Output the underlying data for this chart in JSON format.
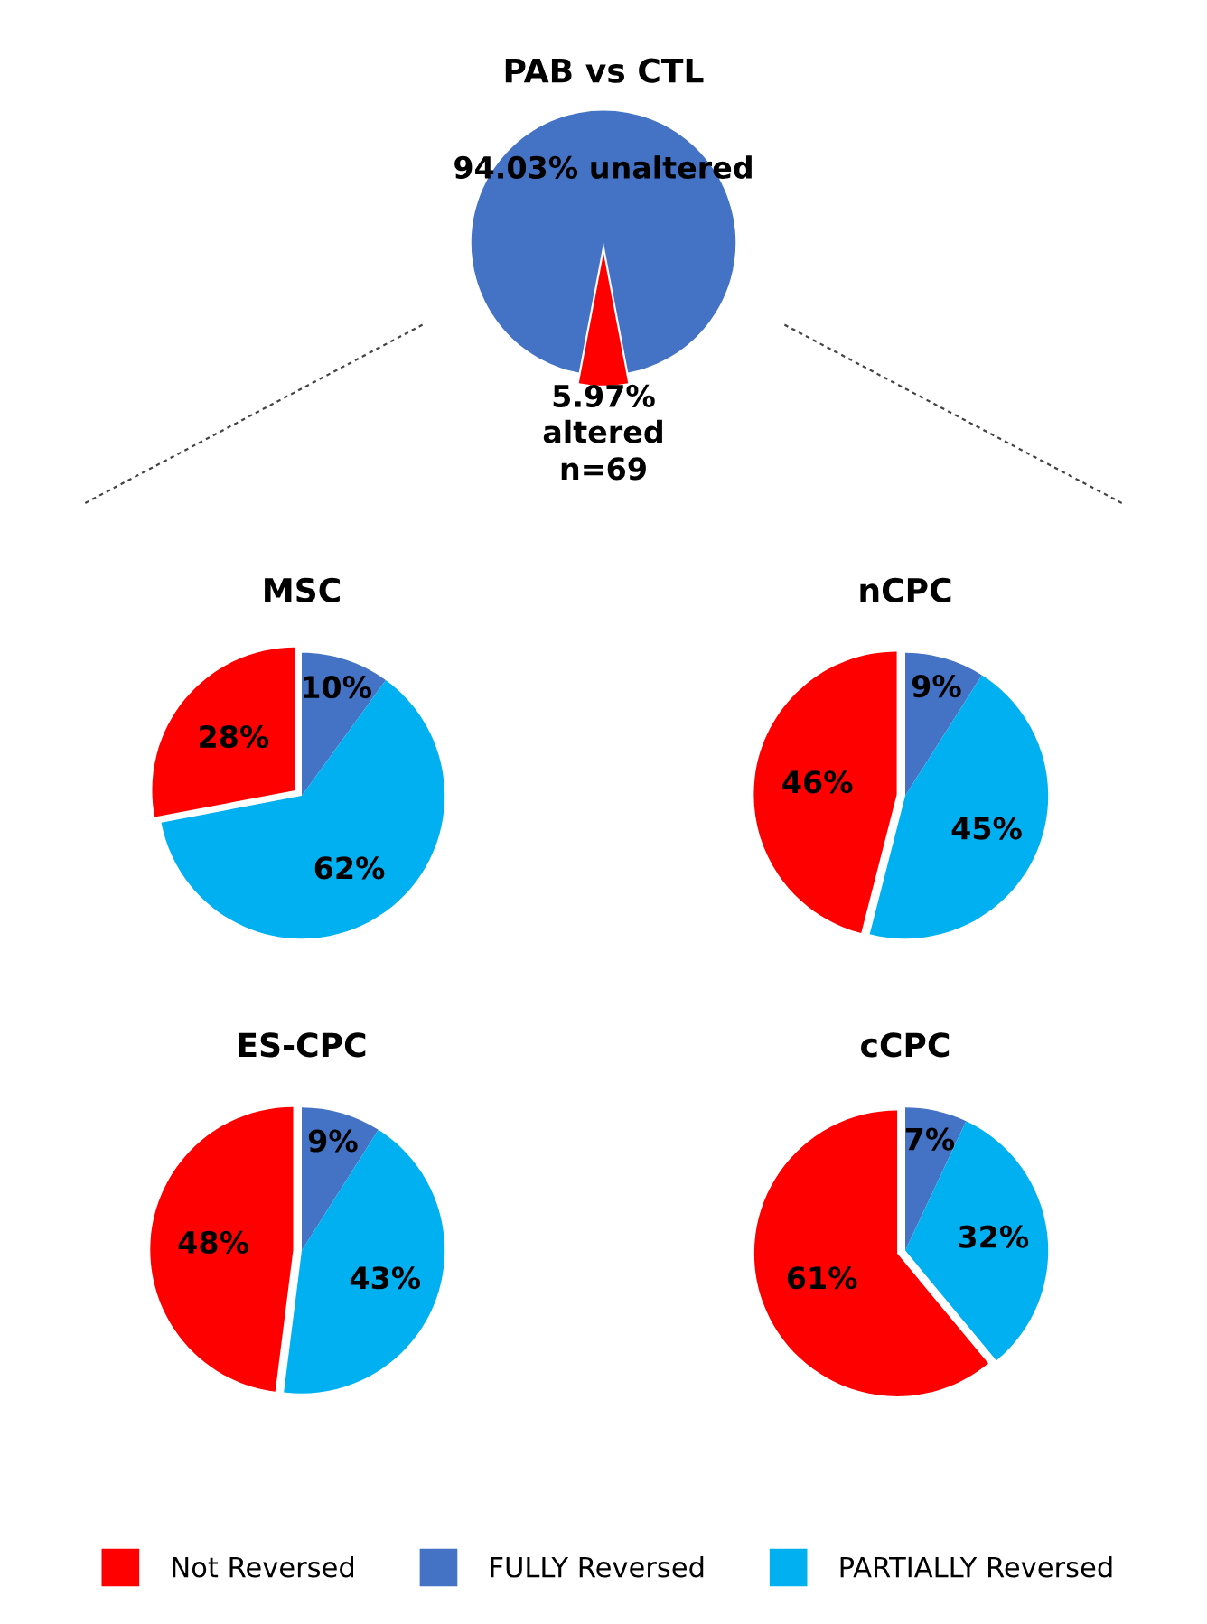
{
  "chart_data": [
    {
      "type": "pie",
      "title": "PAB vs CTL",
      "categories": [
        null,
        null
      ],
      "values": [
        94.03,
        5.97
      ],
      "colors": [
        "#4472c4",
        "#ff0000"
      ],
      "value_labels": [
        "94.03% unaltered",
        "5.97%"
      ],
      "annotations": [
        "altered",
        "n=69"
      ]
    },
    {
      "type": "pie",
      "title": "MSC",
      "categories": [
        "Not Reversed",
        "FULLY Reversed",
        "PARTIALLY Reversed"
      ],
      "values": [
        28,
        10,
        62
      ],
      "colors": [
        "#ff0000",
        "#4472c4",
        "#00b0f0"
      ],
      "value_labels": [
        "28%",
        "10%",
        "62%"
      ],
      "legend": "bottom"
    },
    {
      "type": "pie",
      "title": "nCPC",
      "categories": [
        null,
        null,
        null
      ],
      "values": [
        46,
        9,
        45
      ],
      "colors": [
        "#ff0000",
        "#4472c4",
        "#00b0f0"
      ],
      "value_labels": [
        "46%",
        "9%",
        "45%"
      ]
    },
    {
      "type": "pie",
      "title": "ES-CPC",
      "categories": [
        null,
        null,
        null
      ],
      "values": [
        48,
        9,
        43
      ],
      "colors": [
        "#ff0000",
        "#4472c4",
        "#00b0f0"
      ],
      "value_labels": [
        "48%",
        "9%",
        "43%"
      ]
    },
    {
      "type": "pie",
      "title": "cCPC",
      "categories": [
        null,
        null,
        null
      ],
      "values": [
        61,
        7,
        32
      ],
      "colors": [
        "#ff0000",
        "#4472c4",
        "#00b0f0"
      ],
      "value_labels": [
        "61%",
        "7%",
        "32%"
      ]
    }
  ]
}
